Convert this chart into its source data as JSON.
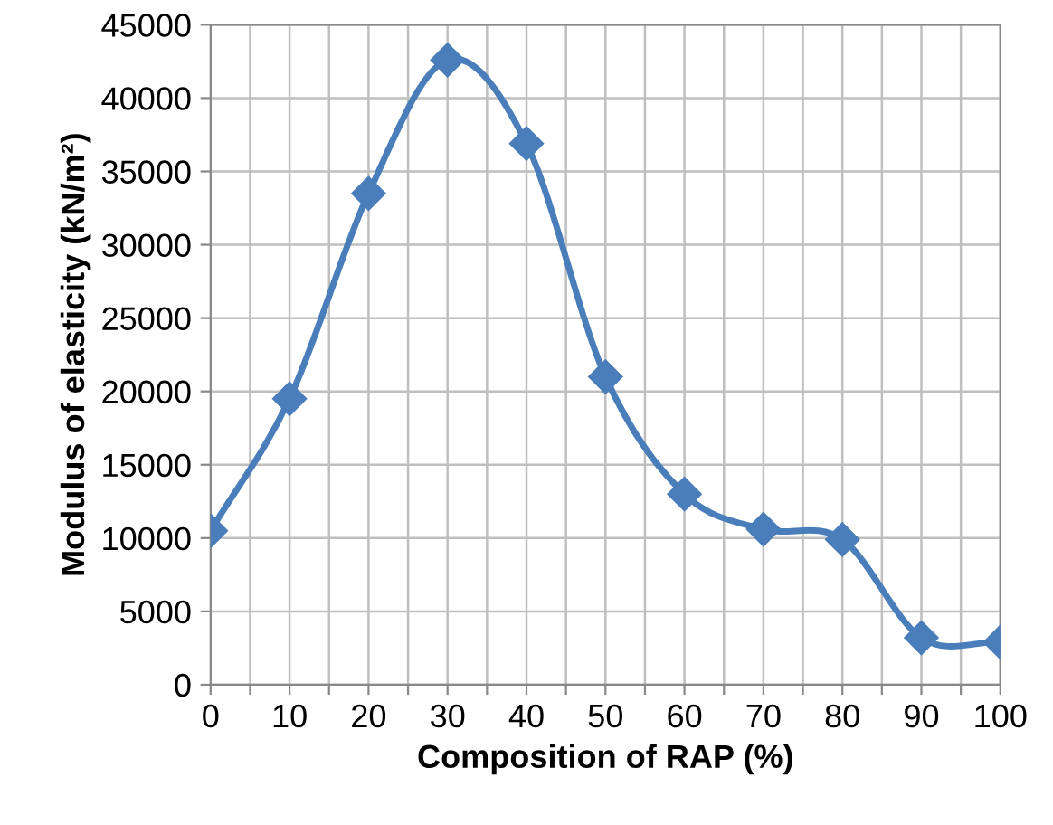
{
  "chart_data": {
    "type": "line",
    "xlabel": "Composition of RAP (%)",
    "ylabel": "Modulus of elasticity (kN/m²)",
    "x": [
      0,
      10,
      20,
      30,
      40,
      50,
      60,
      70,
      80,
      90,
      100
    ],
    "series": [
      {
        "color": "#4a7ebb",
        "values": [
          10500,
          19500,
          33500,
          42600,
          36900,
          21000,
          13000,
          10600,
          9900,
          3200,
          2900
        ]
      }
    ],
    "xlim": [
      0,
      100
    ],
    "ylim": [
      0,
      45000
    ],
    "xticks": [
      0,
      {
        "value": 5,
        "label": null
      },
      10,
      {
        "value": 15,
        "label": null
      },
      20,
      {
        "value": 25,
        "label": null
      },
      30,
      {
        "value": 35,
        "label": null
      },
      40,
      {
        "value": 45,
        "label": null
      },
      50,
      {
        "value": 55,
        "label": null
      },
      60,
      {
        "value": 65,
        "label": null
      },
      70,
      {
        "value": 75,
        "label": null
      },
      80,
      {
        "value": 85,
        "label": null
      },
      90,
      {
        "value": 95,
        "label": null
      },
      100
    ],
    "yticks": [
      0,
      5000,
      10000,
      15000,
      20000,
      25000,
      30000,
      35000,
      40000,
      45000
    ],
    "grid": true,
    "marker": "diamond",
    "line_style": "solid"
  }
}
